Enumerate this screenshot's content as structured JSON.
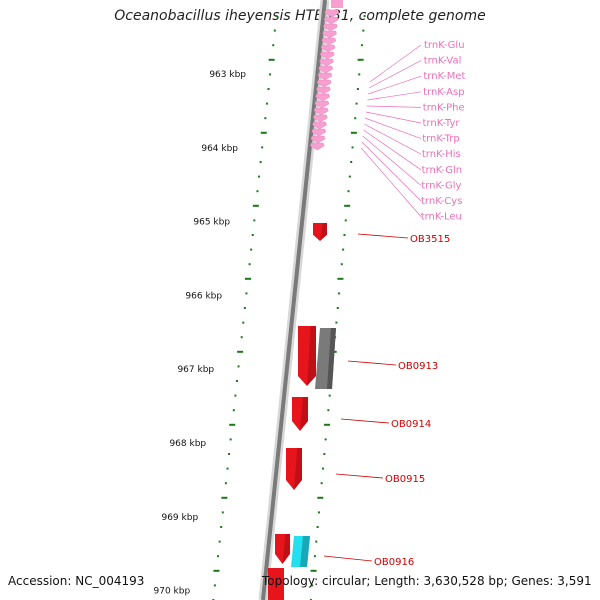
{
  "title": "Oceanobacillus iheyensis HTE831, complete genome",
  "kbp_labels": [
    "963 kbp",
    "964 kbp",
    "965 kbp",
    "966 kbp",
    "967 kbp",
    "968 kbp",
    "969 kbp",
    "970 kbp"
  ],
  "trna_labels": [
    "trnK-Glu",
    "trnK-Val",
    "trnK-Met",
    "trnK-Asp",
    "trnK-Phe",
    "trnK-Tyr",
    "trnK-Trp",
    "trnK-His",
    "trnK-Gln",
    "trnK-Gly",
    "trnK-Cys",
    "trnK-Leu"
  ],
  "gene_labels": [
    "OB3515",
    "OB0913",
    "OB0914",
    "OB0915",
    "OB0916"
  ],
  "footer": {
    "accession": "Accession: NC_004193",
    "topology": "Topology: circular; Length: 3,630,528 bp; Genes: 3,591"
  },
  "colors": {
    "trna": "#f7a0d0",
    "trna_label": "#e870b8",
    "gene_red": "#e8141c",
    "gene_grey": "#7a7a7a",
    "gene_cyan": "#22e0f0",
    "gene_label": "#cc0000",
    "tick": "#1a7a1a",
    "backbone": "#808080"
  }
}
